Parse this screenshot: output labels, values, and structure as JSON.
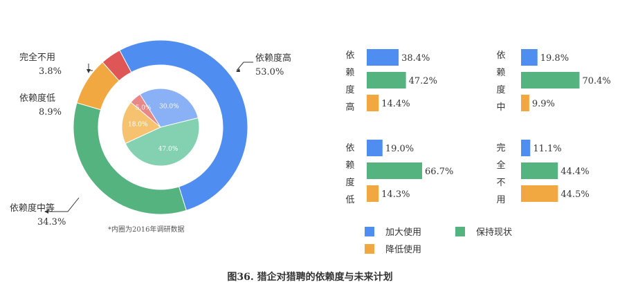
{
  "colors": {
    "blue": "#4f8ef0",
    "green": "#55b380",
    "orange": "#f2a840",
    "red": "#de5656",
    "inner_blue": "#8ab0f5",
    "inner_green": "#83d1b0",
    "inner_orange": "#f6c26f",
    "inner_red": "#e88787"
  },
  "chart_data": [
    {
      "type": "pie",
      "variant": "donut",
      "note": "outer ring",
      "slices": [
        {
          "label": "依赖度高",
          "value": 53.0,
          "value_label": "53.0%",
          "color": "#4f8ef0"
        },
        {
          "label": "依赖度中等",
          "value": 34.3,
          "value_label": "34.3%",
          "color": "#55b380"
        },
        {
          "label": "依赖度低",
          "value": 8.9,
          "value_label": "8.9%",
          "color": "#f2a840"
        },
        {
          "label": "完全不用",
          "value": 3.8,
          "value_label": "3.8%",
          "color": "#de5656"
        }
      ]
    },
    {
      "type": "pie",
      "note": "inner pie",
      "slices": [
        {
          "value": 30.0,
          "value_label": "30.0%",
          "color": "#8ab0f5"
        },
        {
          "value": 47.0,
          "value_label": "47.0%",
          "color": "#83d1b0"
        },
        {
          "value": 18.0,
          "value_label": "18.0%",
          "color": "#f6c26f"
        },
        {
          "value": 5.0,
          "value_label": "5.0%",
          "color": "#e88787"
        }
      ]
    },
    {
      "type": "bar",
      "orientation": "horizontal",
      "group_label": "依赖度高",
      "bars": [
        {
          "series": "加大使用",
          "value": 38.4,
          "label": "38.4%"
        },
        {
          "series": "保持现状",
          "value": 47.2,
          "label": "47.2%"
        },
        {
          "series": "降低使用",
          "value": 14.4,
          "label": "14.4%"
        }
      ]
    },
    {
      "type": "bar",
      "orientation": "horizontal",
      "group_label": "依赖度中",
      "bars": [
        {
          "series": "加大使用",
          "value": 19.8,
          "label": "19.8%"
        },
        {
          "series": "保持现状",
          "value": 70.4,
          "label": "70.4%"
        },
        {
          "series": "降低使用",
          "value": 9.9,
          "label": "9.9%"
        }
      ]
    },
    {
      "type": "bar",
      "orientation": "horizontal",
      "group_label": "依赖度低",
      "bars": [
        {
          "series": "加大使用",
          "value": 19.0,
          "label": "19.0%"
        },
        {
          "series": "保持现状",
          "value": 66.7,
          "label": "66.7%"
        },
        {
          "series": "降低使用",
          "value": 14.3,
          "label": "14.3%"
        }
      ]
    },
    {
      "type": "bar",
      "orientation": "horizontal",
      "group_label": "完全不用",
      "bars": [
        {
          "series": "加大使用",
          "value": 11.1,
          "label": "11.1%"
        },
        {
          "series": "保持现状",
          "value": 44.4,
          "label": "44.4%"
        },
        {
          "series": "降低使用",
          "value": 44.5,
          "label": "44.5%"
        }
      ]
    }
  ],
  "legend": [
    {
      "label": "加大使用",
      "color": "#4f8ef0"
    },
    {
      "label": "保持现状",
      "color": "#55b380"
    },
    {
      "label": "降低使用",
      "color": "#f2a840"
    }
  ],
  "footnote": "*内圈为2016年调研数据",
  "caption": "图36. 猎企对猎聘的依赖度与未来计划"
}
